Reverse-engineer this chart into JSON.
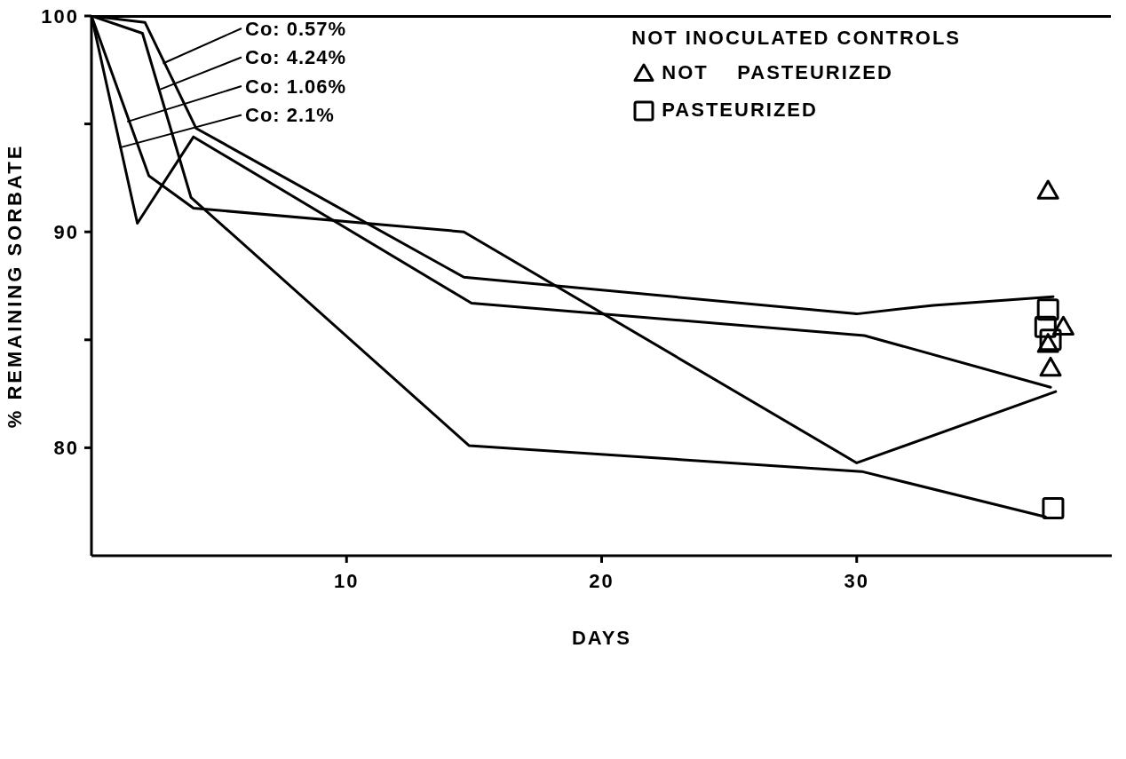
{
  "chart_data": {
    "type": "line",
    "xlabel": "DAYS",
    "ylabel": "% REMAINING SORBATE",
    "legend_title": "NOT INOCULATED CONTROLS",
    "legend": "top right",
    "xlim": [
      0,
      40
    ],
    "ylim": [
      75,
      100
    ],
    "xticks": [
      10,
      20,
      30
    ],
    "yticks": [
      {
        "value": 80,
        "label": "80"
      },
      {
        "value": 85,
        "label": null
      },
      {
        "value": 90,
        "label": "90"
      },
      {
        "value": 95,
        "label": null
      },
      {
        "value": 100,
        "label": "100"
      }
    ],
    "grid": false,
    "line_style": "solid",
    "series": [
      {
        "color": "#000000",
        "marker": "none",
        "x": [
          0,
          2.1,
          4.1,
          14.6,
          30,
          33,
          37.7
        ],
        "values": [
          100,
          99.7,
          94.8,
          87.9,
          86.2,
          86.6,
          87.0
        ]
      },
      {
        "color": "#000000",
        "marker": "none",
        "x": [
          0,
          2,
          3.9,
          14.8,
          30.2,
          37.4
        ],
        "values": [
          100,
          99.2,
          91.6,
          80.1,
          78.9,
          76.8
        ]
      },
      {
        "color": "#000000",
        "marker": "none",
        "x": [
          0,
          2.25,
          4,
          14.6,
          30,
          37.8
        ],
        "values": [
          100,
          92.6,
          91.1,
          90.0,
          79.3,
          82.6
        ]
      },
      {
        "color": "#000000",
        "marker": "none",
        "x": [
          0,
          1.8,
          4,
          14.9,
          30.3,
          37.6
        ],
        "values": [
          100,
          90.4,
          94.4,
          86.7,
          85.2,
          82.8
        ]
      },
      {
        "type": "scatter",
        "name": "NOT    PASTEURIZED",
        "color": "#000000",
        "marker": "triangle",
        "x": [
          37.5,
          38.1,
          37.5,
          37.6
        ],
        "values": [
          91.9,
          85.6,
          84.8,
          83.7
        ]
      },
      {
        "type": "scatter",
        "name": "PASTEURIZED",
        "color": "#000000",
        "marker": "square",
        "x": [
          37.5,
          37.4,
          37.6,
          37.7
        ],
        "values": [
          86.4,
          85.6,
          85.0,
          77.2
        ]
      }
    ],
    "annotations": [
      {
        "text": "Co: 0.57%",
        "x": 2.8,
        "y": 97.8
      },
      {
        "text": "Co: 4.24%",
        "x": 2.7,
        "y": 96.6
      },
      {
        "text": "Co: 1.06%",
        "x": 1.4,
        "y": 95.1
      },
      {
        "text": "Co: 2.1%",
        "x": 1.1,
        "y": 93.9
      }
    ]
  }
}
